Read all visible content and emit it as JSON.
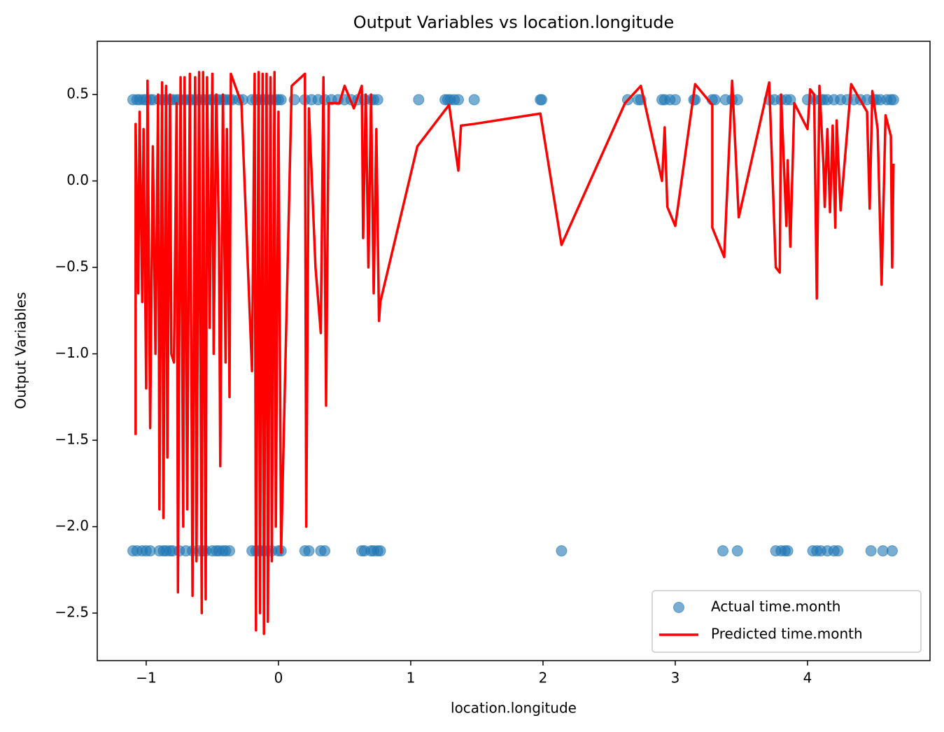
{
  "chart_data": {
    "type": "scatter",
    "title": "Output Variables vs location.longitude",
    "x_label": "location.longitude",
    "y_label": "Output Variables",
    "xlim": [
      -1.37,
      4.926
    ],
    "ylim": [
      -2.775,
      0.808
    ],
    "xticks": [
      {
        "value": -1,
        "label": "−1"
      },
      0,
      1,
      2,
      3,
      4
    ],
    "yticks": [
      0.5,
      {
        "value": 0,
        "label": "0.0"
      },
      {
        "value": -0.5,
        "label": "−0.5"
      },
      {
        "value": -1,
        "label": "−1.0"
      },
      {
        "value": -1.5,
        "label": "−1.5"
      },
      {
        "value": -2,
        "label": "−2.0"
      },
      {
        "value": -2.5,
        "label": "−2.5"
      }
    ],
    "legend_position": "lower right",
    "series": [
      {
        "name": "Actual time.month",
        "type": "scatter",
        "color": "#1f77b4",
        "x": [
          -1.1,
          -1.07,
          -1.05,
          -1.02,
          -1.0,
          -0.97,
          -0.95,
          -0.9,
          -0.87,
          -0.85,
          -0.82,
          -0.8,
          -0.77,
          -0.75,
          -0.72,
          -0.7,
          -0.67,
          -0.65,
          -0.62,
          -0.6,
          -0.57,
          -0.55,
          -0.52,
          -0.5,
          -0.47,
          -0.45,
          -0.42,
          -0.4,
          -0.37,
          -0.35,
          -0.3,
          -0.27,
          -0.2,
          -0.17,
          -0.15,
          -0.12,
          -0.1,
          -0.07,
          -0.05,
          -0.02,
          0.0,
          0.02,
          0.12,
          0.2,
          0.25,
          0.3,
          0.35,
          0.4,
          0.45,
          0.5,
          0.55,
          0.6,
          0.65,
          0.7,
          0.72,
          0.75,
          1.06,
          1.26,
          1.28,
          1.3,
          1.33,
          1.36,
          1.48,
          1.98,
          1.99,
          2.64,
          2.72,
          2.74,
          2.9,
          2.92,
          2.96,
          3.0,
          3.14,
          3.15,
          3.28,
          3.3,
          3.38,
          3.43,
          3.47,
          3.71,
          3.75,
          3.8,
          3.84,
          3.87,
          4.0,
          4.05,
          4.1,
          4.12,
          4.15,
          4.2,
          4.25,
          4.3,
          4.35,
          4.4,
          4.45,
          4.5,
          4.52,
          4.55,
          4.6,
          4.63,
          4.65,
          -1.1,
          -1.07,
          -1.03,
          -1.0,
          -0.97,
          -0.9,
          -0.87,
          -0.85,
          -0.82,
          -0.8,
          -0.75,
          -0.7,
          -0.65,
          -0.6,
          -0.57,
          -0.55,
          -0.5,
          -0.47,
          -0.45,
          -0.42,
          -0.4,
          -0.37,
          -0.2,
          -0.17,
          -0.15,
          -0.12,
          -0.1,
          -0.05,
          0.0,
          0.02,
          0.2,
          0.23,
          0.32,
          0.35,
          0.63,
          0.65,
          0.7,
          0.72,
          0.75,
          0.77,
          2.14,
          3.36,
          3.47,
          3.76,
          3.8,
          3.83,
          3.85,
          4.04,
          4.07,
          4.1,
          4.15,
          4.2,
          4.23,
          4.48,
          4.57,
          4.64
        ],
        "values": [
          0.47,
          0.47,
          0.47,
          0.47,
          0.47,
          0.47,
          0.47,
          0.47,
          0.47,
          0.47,
          0.47,
          0.47,
          0.47,
          0.47,
          0.47,
          0.47,
          0.47,
          0.47,
          0.47,
          0.47,
          0.47,
          0.47,
          0.47,
          0.47,
          0.47,
          0.47,
          0.47,
          0.47,
          0.47,
          0.47,
          0.47,
          0.47,
          0.47,
          0.47,
          0.47,
          0.47,
          0.47,
          0.47,
          0.47,
          0.47,
          0.47,
          0.47,
          0.47,
          0.47,
          0.47,
          0.47,
          0.47,
          0.47,
          0.47,
          0.47,
          0.47,
          0.47,
          0.47,
          0.47,
          0.47,
          0.47,
          0.47,
          0.47,
          0.47,
          0.47,
          0.47,
          0.47,
          0.47,
          0.47,
          0.47,
          0.47,
          0.47,
          0.47,
          0.47,
          0.47,
          0.47,
          0.47,
          0.47,
          0.47,
          0.47,
          0.47,
          0.47,
          0.47,
          0.47,
          0.47,
          0.47,
          0.47,
          0.47,
          0.47,
          0.47,
          0.47,
          0.47,
          0.47,
          0.47,
          0.47,
          0.47,
          0.47,
          0.47,
          0.47,
          0.47,
          0.47,
          0.47,
          0.47,
          0.47,
          0.47,
          0.47,
          -2.14,
          -2.14,
          -2.14,
          -2.14,
          -2.14,
          -2.14,
          -2.14,
          -2.14,
          -2.14,
          -2.14,
          -2.14,
          -2.14,
          -2.14,
          -2.14,
          -2.14,
          -2.14,
          -2.14,
          -2.14,
          -2.14,
          -2.14,
          -2.14,
          -2.14,
          -2.14,
          -2.14,
          -2.14,
          -2.14,
          -2.14,
          -2.14,
          -2.14,
          -2.14,
          -2.14,
          -2.14,
          -2.14,
          -2.14,
          -2.14,
          -2.14,
          -2.14,
          -2.14,
          -2.14,
          -2.14,
          -2.14,
          -2.14,
          -2.14,
          -2.14,
          -2.14,
          -2.14,
          -2.14,
          -2.14,
          -2.14,
          -2.14,
          -2.14,
          -2.14,
          -2.14,
          -2.14,
          -2.14,
          -2.14
        ]
      },
      {
        "name": "Predicted time.month",
        "type": "line",
        "color": "#ff0000",
        "x": [
          -1.08,
          -1.08,
          -1.06,
          -1.05,
          -1.03,
          -1.02,
          -1.0,
          -0.99,
          -0.97,
          -0.95,
          -0.93,
          -0.91,
          -0.9,
          -0.88,
          -0.87,
          -0.85,
          -0.84,
          -0.82,
          -0.81,
          -0.79,
          -0.77,
          -0.76,
          -0.74,
          -0.72,
          -0.71,
          -0.69,
          -0.67,
          -0.65,
          -0.63,
          -0.62,
          -0.6,
          -0.58,
          -0.57,
          -0.55,
          -0.54,
          -0.52,
          -0.5,
          -0.49,
          -0.47,
          -0.45,
          -0.44,
          -0.42,
          -0.4,
          -0.39,
          -0.37,
          -0.36,
          -0.28,
          -0.2,
          -0.18,
          -0.17,
          -0.15,
          -0.14,
          -0.12,
          -0.11,
          -0.09,
          -0.08,
          -0.06,
          -0.05,
          -0.03,
          -0.02,
          0.0,
          0.02,
          0.1,
          0.2,
          0.21,
          0.23,
          0.28,
          0.32,
          0.34,
          0.36,
          0.38,
          0.46,
          0.5,
          0.57,
          0.63,
          0.64,
          0.66,
          0.68,
          0.7,
          0.72,
          0.74,
          0.76,
          0.77,
          1.05,
          1.29,
          1.36,
          1.38,
          1.48,
          1.98,
          2.14,
          2.62,
          2.74,
          2.9,
          2.92,
          2.94,
          3.0,
          3.15,
          3.28,
          3.28,
          3.37,
          3.43,
          3.48,
          3.71,
          3.76,
          3.79,
          3.8,
          3.84,
          3.85,
          3.87,
          3.9,
          4.0,
          4.02,
          4.05,
          4.07,
          4.09,
          4.12,
          4.13,
          4.15,
          4.17,
          4.19,
          4.21,
          4.22,
          4.25,
          4.33,
          4.45,
          4.47,
          4.49,
          4.53,
          4.56,
          4.59,
          4.63,
          4.64,
          4.65
        ],
        "values": [
          -1.47,
          0.33,
          -0.65,
          0.4,
          -0.7,
          0.3,
          -1.2,
          0.58,
          -1.43,
          0.2,
          -1.0,
          0.5,
          -1.9,
          0.57,
          -1.95,
          0.55,
          -1.6,
          0.5,
          -1.0,
          -1.05,
          0.45,
          -2.38,
          0.6,
          -2.0,
          0.6,
          -1.9,
          0.62,
          -2.4,
          0.6,
          -2.2,
          0.63,
          -2.5,
          0.63,
          -2.42,
          0.6,
          -0.85,
          0.62,
          -1.0,
          0.5,
          -0.3,
          -1.65,
          0.5,
          -1.05,
          0.3,
          -1.25,
          0.62,
          0.45,
          -1.1,
          0.62,
          -2.6,
          0.63,
          -2.5,
          0.62,
          -2.62,
          0.62,
          -2.55,
          0.6,
          -2.2,
          0.63,
          -2.0,
          0.4,
          -2.15,
          0.55,
          0.62,
          -2.0,
          0.42,
          -0.5,
          -0.88,
          0.6,
          -1.3,
          0.45,
          0.45,
          0.55,
          0.42,
          0.55,
          -0.33,
          0.5,
          -0.5,
          0.5,
          -0.65,
          0.3,
          -0.81,
          -0.7,
          0.2,
          0.44,
          0.06,
          0.32,
          0.33,
          0.39,
          -0.37,
          0.45,
          0.55,
          0.0,
          0.31,
          -0.15,
          -0.26,
          0.56,
          0.44,
          -0.27,
          -0.44,
          0.58,
          -0.21,
          0.57,
          -0.5,
          -0.53,
          0.5,
          -0.26,
          0.12,
          -0.38,
          0.45,
          0.3,
          0.53,
          0.5,
          -0.68,
          0.55,
          0.1,
          -0.15,
          0.3,
          -0.18,
          0.32,
          -0.27,
          0.35,
          -0.17,
          0.56,
          0.4,
          -0.16,
          0.52,
          0.3,
          -0.6,
          0.38,
          0.26,
          -0.5,
          0.1
        ]
      }
    ]
  }
}
